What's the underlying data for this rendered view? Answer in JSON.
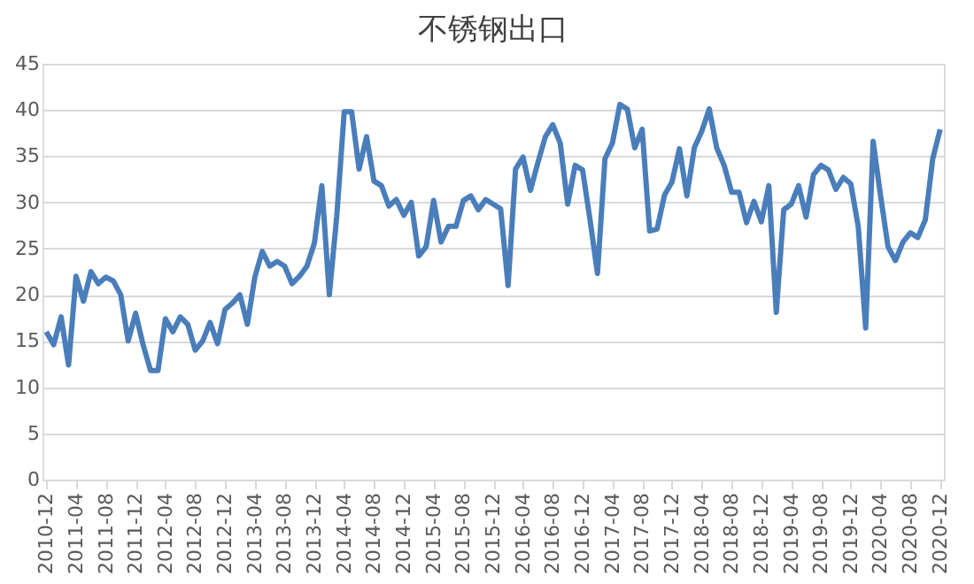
{
  "chart_data": {
    "type": "line",
    "title": "不锈钢出口",
    "categories": [
      "2010-12",
      null,
      null,
      null,
      "2011-04",
      null,
      null,
      null,
      "2011-08",
      null,
      null,
      null,
      "2011-12",
      null,
      null,
      null,
      "2012-04",
      null,
      null,
      null,
      "2012-08",
      null,
      null,
      null,
      "2012-12",
      null,
      null,
      null,
      "2013-04",
      null,
      null,
      null,
      "2013-08",
      null,
      null,
      null,
      "2013-12",
      null,
      null,
      null,
      "2014-04",
      null,
      null,
      null,
      "2014-08",
      null,
      null,
      null,
      "2014-12",
      null,
      null,
      null,
      "2015-04",
      null,
      null,
      null,
      "2015-08",
      null,
      null,
      null,
      "2015-12",
      null,
      null,
      null,
      "2016-04",
      null,
      null,
      null,
      "2016-08",
      null,
      null,
      null,
      "2016-12",
      null,
      null,
      null,
      "2017-04",
      null,
      null,
      null,
      "2017-08",
      null,
      null,
      null,
      "2017-12",
      null,
      null,
      null,
      "2018-04",
      null,
      null,
      null,
      "2018-08",
      null,
      null,
      null,
      "2018-12",
      null,
      null,
      null,
      "2019-04",
      null,
      null,
      null,
      "2019-08",
      null,
      null,
      null,
      "2019-12",
      null,
      null,
      null,
      "2020-04",
      null,
      null,
      null,
      "2020-08",
      null,
      null,
      null,
      "2020-12"
    ],
    "series": [
      {
        "color": "#4a7ebb",
        "values": [
          16,
          14.6,
          17.6,
          12.4,
          22,
          19.3,
          22.5,
          21.2,
          21.9,
          21.5,
          20,
          15,
          18,
          14.6,
          11.8,
          11.8,
          17.4,
          16,
          17.6,
          16.8,
          14,
          15,
          17,
          14.7,
          18.4,
          19.1,
          20,
          16.8,
          21.9,
          24.7,
          23.1,
          23.6,
          23.1,
          21.2,
          22,
          23.1,
          25.6,
          31.8,
          20,
          28.5,
          39.8,
          39.8,
          33.6,
          37.1,
          32.3,
          31.8,
          29.6,
          30.3,
          28.6,
          30,
          24.2,
          25.2,
          30.2,
          25.7,
          27.4,
          27.4,
          30.2,
          30.7,
          29.2,
          30.3,
          29.8,
          29.3,
          21,
          33.6,
          34.9,
          31.3,
          34.3,
          37.1,
          38.4,
          36.4,
          29.8,
          34,
          33.5,
          28.1,
          22.3,
          34.7,
          36.4,
          40.6,
          40.1,
          35.9,
          37.9,
          26.9,
          27.1,
          30.8,
          32.2,
          35.8,
          30.7,
          35.9,
          37.7,
          40.1,
          35.9,
          34,
          31.1,
          31.1,
          27.8,
          30.1,
          27.9,
          31.8,
          18.1,
          29.2,
          29.8,
          31.8,
          28.4,
          33,
          34,
          33.5,
          31.4,
          32.7,
          32,
          27.4,
          16.4,
          36.6,
          30.7,
          25.2,
          23.7,
          25.7,
          26.7,
          26.2,
          28.1,
          34.7,
          37.9
        ]
      }
    ],
    "ylim": [
      0,
      45
    ],
    "yticks": [
      0,
      5,
      10,
      15,
      20,
      25,
      30,
      35,
      40,
      45
    ],
    "grid": "y",
    "legend": false,
    "marker": "none",
    "line_style": "solid"
  }
}
